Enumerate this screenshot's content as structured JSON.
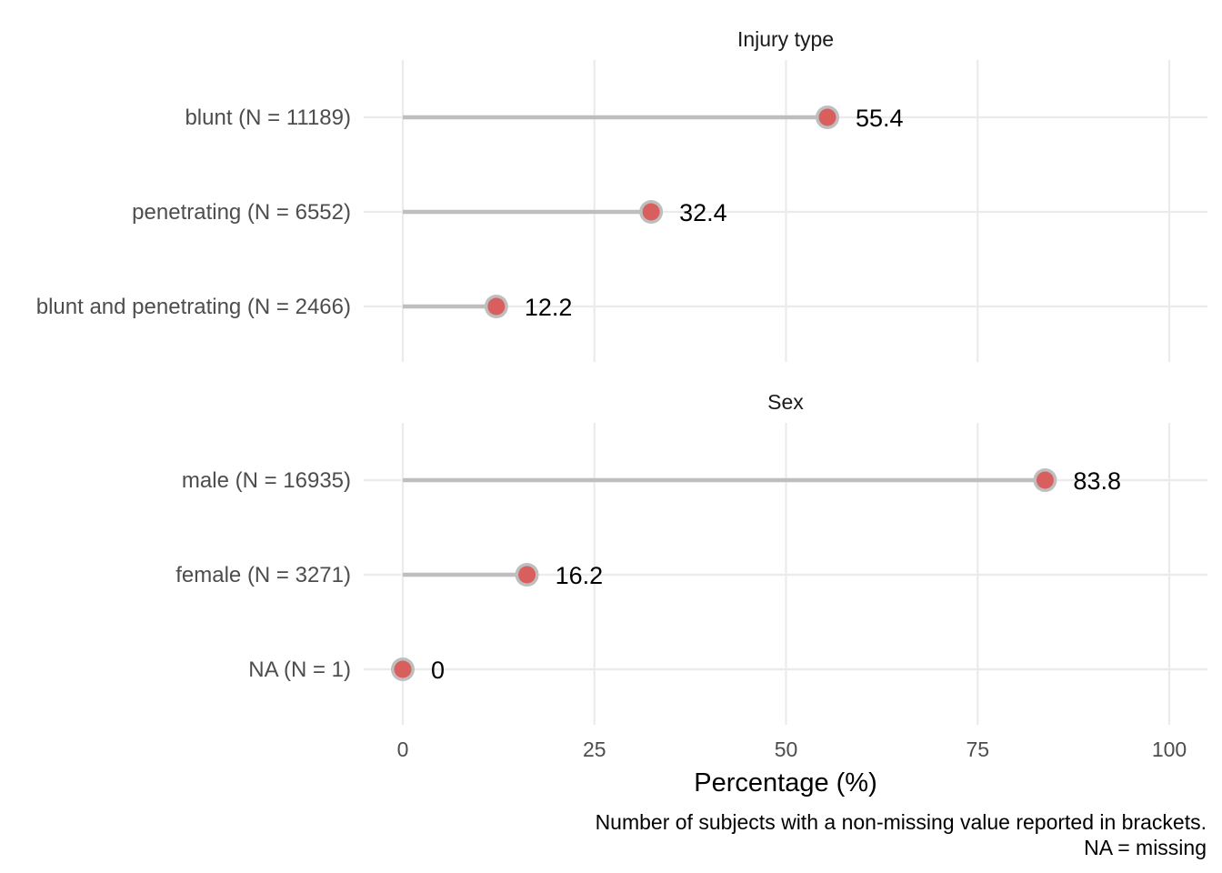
{
  "chart_data": {
    "type": "lollipop",
    "xlabel": "Percentage (%)",
    "xlim": [
      0,
      100
    ],
    "x_ticks": [
      "0",
      "25",
      "50",
      "75",
      "100"
    ],
    "grid": true,
    "caption_lines": [
      "Number of subjects with a non-missing value reported in brackets.",
      "NA = missing"
    ],
    "panels": [
      {
        "title": "Injury type",
        "categories": [
          "blunt (N = 11189)",
          "penetrating (N = 6552)",
          "blunt and penetrating (N = 2466)"
        ],
        "values": [
          55.4,
          32.4,
          12.2
        ],
        "labels": [
          "55.4",
          "32.4",
          "12.2"
        ]
      },
      {
        "title": "Sex",
        "categories": [
          "male (N = 16935)",
          "female (N = 3271)",
          "NA (N = 1)"
        ],
        "values": [
          83.8,
          16.2,
          0
        ],
        "labels": [
          "83.8",
          "16.2",
          "0"
        ]
      }
    ]
  }
}
